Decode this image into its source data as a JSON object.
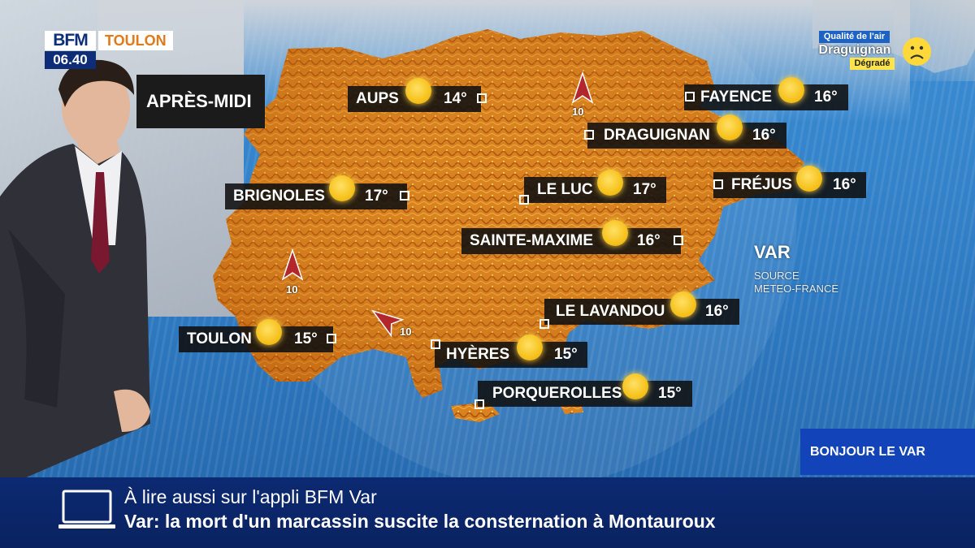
{
  "logo": {
    "brand": "BFM",
    "time": "06.40",
    "city": "TOULON"
  },
  "period": "APRÈS-MIDI",
  "cities": [
    {
      "name": "AUPS",
      "temp": "14°"
    },
    {
      "name": "FAYENCE",
      "temp": "16°"
    },
    {
      "name": "DRAGUIGNAN",
      "temp": "16°"
    },
    {
      "name": "BRIGNOLES",
      "temp": "17°"
    },
    {
      "name": "LE LUC",
      "temp": "17°"
    },
    {
      "name": "FRÉJUS",
      "temp": "16°"
    },
    {
      "name": "SAINTE-MAXIME",
      "temp": "16°"
    },
    {
      "name": "LE LAVANDOU",
      "temp": "16°"
    },
    {
      "name": "TOULON",
      "temp": "15°"
    },
    {
      "name": "HYÈRES",
      "temp": "15°"
    },
    {
      "name": "PORQUEROLLES",
      "temp": "15°"
    }
  ],
  "weather_icon": "sun-icon",
  "wind": [
    {
      "value": "10"
    },
    {
      "value": "10"
    },
    {
      "value": "10"
    }
  ],
  "air_quality": {
    "title": "Qualité de l'air",
    "city": "Draguignan",
    "level": "Dégradé",
    "face": "sad-face-icon"
  },
  "region": "VAR",
  "source": {
    "line1": "SOURCE",
    "line2": "METEO-FRANCE"
  },
  "program": "BONJOUR LE VAR",
  "ticker": {
    "line1": "À lire aussi sur l'appli BFM Var",
    "line2": "Var: la mort d'un marcassin suscite la consternation à Montauroux",
    "icon": "laptop-icon"
  },
  "colors": {
    "brand_blue": "#0d2d78",
    "accent_orange": "#e07a1a",
    "sun": "#f6c21c",
    "land": "#d9821f"
  }
}
